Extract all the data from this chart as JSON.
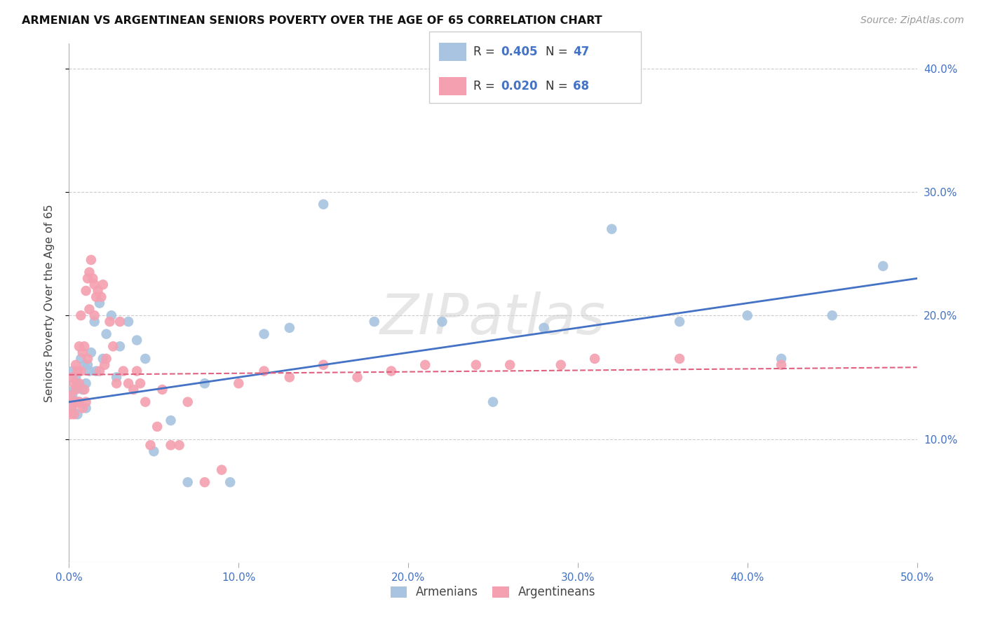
{
  "title": "ARMENIAN VS ARGENTINEAN SENIORS POVERTY OVER THE AGE OF 65 CORRELATION CHART",
  "source": "Source: ZipAtlas.com",
  "ylabel": "Seniors Poverty Over the Age of 65",
  "xlim": [
    0,
    0.5
  ],
  "ylim": [
    0,
    0.42
  ],
  "xticks": [
    0.0,
    0.1,
    0.2,
    0.3,
    0.4,
    0.5
  ],
  "yticks": [
    0.1,
    0.2,
    0.3,
    0.4
  ],
  "ytick_labels": [
    "10.0%",
    "20.0%",
    "30.0%",
    "40.0%"
  ],
  "xtick_labels": [
    "0.0%",
    "10.0%",
    "20.0%",
    "30.0%",
    "40.0%",
    "50.0%"
  ],
  "armenian_color": "#a8c4e0",
  "argentinean_color": "#f4a0b0",
  "armenian_line_color": "#4472c4",
  "argentinean_line_color": "#e06080",
  "arm_line_x0": 0.0,
  "arm_line_y0": 0.13,
  "arm_line_x1": 0.5,
  "arm_line_y1": 0.23,
  "arg_line_x0": 0.0,
  "arg_line_y0": 0.152,
  "arg_line_x1": 0.5,
  "arg_line_y1": 0.158,
  "arm_points_x": [
    0.001,
    0.002,
    0.002,
    0.003,
    0.003,
    0.004,
    0.004,
    0.005,
    0.005,
    0.006,
    0.007,
    0.008,
    0.009,
    0.01,
    0.01,
    0.011,
    0.012,
    0.013,
    0.015,
    0.016,
    0.018,
    0.02,
    0.022,
    0.025,
    0.028,
    0.03,
    0.035,
    0.04,
    0.045,
    0.05,
    0.06,
    0.07,
    0.08,
    0.095,
    0.115,
    0.13,
    0.15,
    0.18,
    0.22,
    0.25,
    0.28,
    0.32,
    0.36,
    0.4,
    0.42,
    0.45,
    0.48
  ],
  "arm_points_y": [
    0.125,
    0.155,
    0.135,
    0.13,
    0.14,
    0.13,
    0.15,
    0.145,
    0.12,
    0.13,
    0.165,
    0.14,
    0.16,
    0.125,
    0.145,
    0.16,
    0.155,
    0.17,
    0.195,
    0.155,
    0.21,
    0.165,
    0.185,
    0.2,
    0.15,
    0.175,
    0.195,
    0.18,
    0.165,
    0.09,
    0.115,
    0.065,
    0.145,
    0.065,
    0.185,
    0.19,
    0.29,
    0.195,
    0.195,
    0.13,
    0.19,
    0.27,
    0.195,
    0.2,
    0.165,
    0.2,
    0.24
  ],
  "arg_points_x": [
    0.001,
    0.001,
    0.002,
    0.002,
    0.003,
    0.003,
    0.003,
    0.004,
    0.004,
    0.005,
    0.005,
    0.006,
    0.006,
    0.006,
    0.007,
    0.007,
    0.008,
    0.008,
    0.009,
    0.009,
    0.01,
    0.01,
    0.011,
    0.011,
    0.012,
    0.012,
    0.013,
    0.014,
    0.015,
    0.015,
    0.016,
    0.017,
    0.018,
    0.019,
    0.02,
    0.021,
    0.022,
    0.024,
    0.026,
    0.028,
    0.03,
    0.032,
    0.035,
    0.038,
    0.04,
    0.042,
    0.045,
    0.048,
    0.052,
    0.055,
    0.06,
    0.065,
    0.07,
    0.08,
    0.09,
    0.1,
    0.115,
    0.13,
    0.15,
    0.17,
    0.19,
    0.21,
    0.24,
    0.26,
    0.29,
    0.31,
    0.36,
    0.42
  ],
  "arg_points_y": [
    0.135,
    0.12,
    0.15,
    0.125,
    0.13,
    0.145,
    0.12,
    0.14,
    0.16,
    0.13,
    0.155,
    0.175,
    0.145,
    0.13,
    0.2,
    0.155,
    0.17,
    0.125,
    0.14,
    0.175,
    0.13,
    0.22,
    0.23,
    0.165,
    0.235,
    0.205,
    0.245,
    0.23,
    0.225,
    0.2,
    0.215,
    0.22,
    0.155,
    0.215,
    0.225,
    0.16,
    0.165,
    0.195,
    0.175,
    0.145,
    0.195,
    0.155,
    0.145,
    0.14,
    0.155,
    0.145,
    0.13,
    0.095,
    0.11,
    0.14,
    0.095,
    0.095,
    0.13,
    0.065,
    0.075,
    0.145,
    0.155,
    0.15,
    0.16,
    0.15,
    0.155,
    0.16,
    0.16,
    0.16,
    0.16,
    0.165,
    0.165,
    0.16
  ]
}
